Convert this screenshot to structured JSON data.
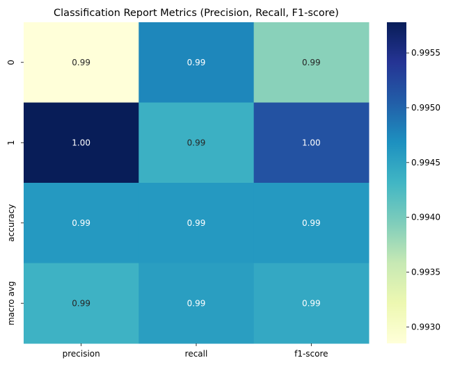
{
  "chart_data": {
    "type": "heatmap",
    "title": "Classification Report Metrics (Precision, Recall, F1-score)",
    "xlabel": "",
    "ylabel": "",
    "x_categories": [
      "precision",
      "recall",
      "f1-score"
    ],
    "y_categories": [
      "0",
      "1",
      "accuracy",
      "macro avg"
    ],
    "values": [
      [
        0.99285,
        0.99475,
        0.9939
      ],
      [
        0.99578,
        0.99437,
        0.99515
      ],
      [
        0.9946,
        0.9946,
        0.9946
      ],
      [
        0.99435,
        0.99455,
        0.99445
      ]
    ],
    "annotations": [
      [
        "0.99",
        "0.99",
        "0.99"
      ],
      [
        "1.00",
        "0.99",
        "1.00"
      ],
      [
        "0.99",
        "0.99",
        "0.99"
      ],
      [
        "0.99",
        "0.99",
        "0.99"
      ]
    ],
    "colormap": "YlGnBu",
    "colorbar": {
      "vmin": 0.99285,
      "vmax": 0.99578,
      "ticks": [
        0.993,
        0.9935,
        0.994,
        0.9945,
        0.995,
        0.9955
      ],
      "tick_labels": [
        "0.9930",
        "0.9935",
        "0.9940",
        "0.9945",
        "0.9950",
        "0.9955"
      ]
    },
    "grid": false,
    "legend": "colorbar-right"
  }
}
